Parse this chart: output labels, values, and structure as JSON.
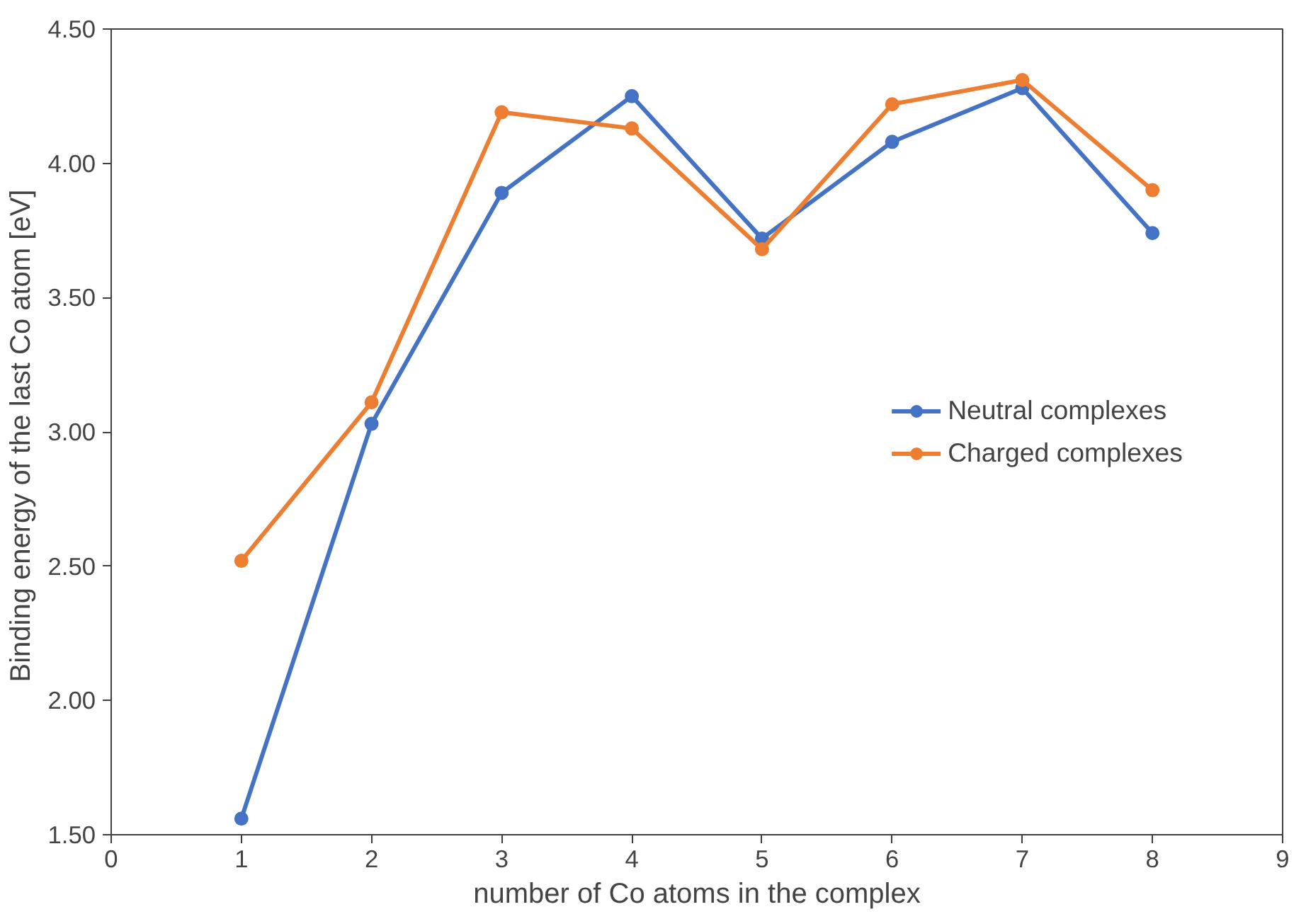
{
  "chart_data": {
    "type": "line",
    "xlabel": "number of Co atoms in the complex",
    "ylabel": "Binding energy of the last Co atom  [eV]",
    "x": [
      1,
      2,
      3,
      4,
      5,
      6,
      7,
      8
    ],
    "series": [
      {
        "name": "Neutral complexes",
        "color": "#4472c4",
        "values": [
          1.56,
          3.03,
          3.89,
          4.25,
          3.72,
          4.08,
          4.28,
          3.74
        ]
      },
      {
        "name": "Charged complexes",
        "color": "#ed7d31",
        "values": [
          2.52,
          3.11,
          4.19,
          4.13,
          3.68,
          4.22,
          4.31,
          3.9
        ]
      }
    ],
    "xlim": [
      0,
      9
    ],
    "xticks": [
      0,
      1,
      2,
      3,
      4,
      5,
      6,
      7,
      8,
      9
    ],
    "ylim": [
      1.5,
      4.5
    ],
    "yticks": [
      {
        "value": 1.5,
        "label": "1.50"
      },
      {
        "value": 2,
        "label": "2.00"
      },
      {
        "value": 2.5,
        "label": "2.50"
      },
      {
        "value": 3,
        "label": "3.00"
      },
      {
        "value": 3.5,
        "label": "3.50"
      },
      {
        "value": 4,
        "label": "4.00"
      },
      {
        "value": 4.5,
        "label": "4.50"
      }
    ],
    "grid": false,
    "legend": "right",
    "marker": "circle",
    "line_style": "solid"
  }
}
